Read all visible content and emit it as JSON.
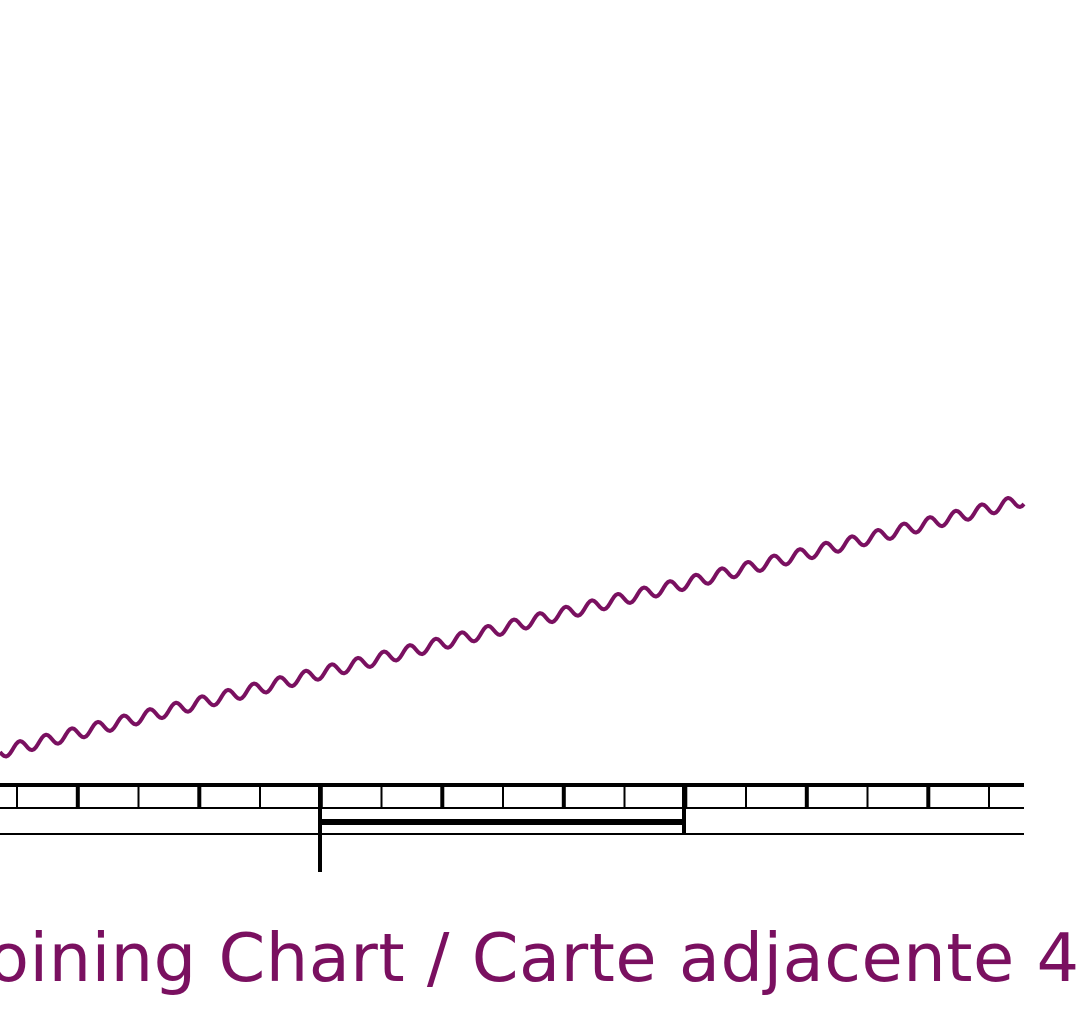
{
  "adjoining_chart_label": "oining Chart / Carte adjacente 4",
  "colors": {
    "boundary_line": "#7a1060",
    "label_text": "#7a1060",
    "border_scale": "#000000",
    "background": "#ffffff"
  }
}
